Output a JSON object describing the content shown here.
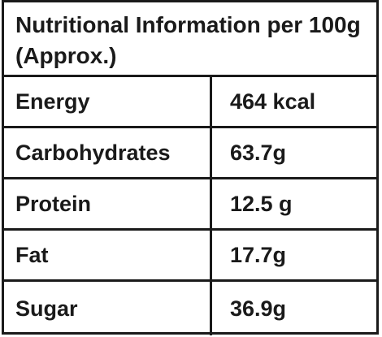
{
  "table": {
    "title": "Nutritional Information per 100g (Approx.)",
    "rows": [
      {
        "label": "Energy",
        "value": "464 kcal"
      },
      {
        "label": "Carbohydrates",
        "value": "63.7g"
      },
      {
        "label": "Protein",
        "value": "12.5 g"
      },
      {
        "label": "Fat",
        "value": "17.7g"
      },
      {
        "label": "Sugar",
        "value": "36.9g"
      }
    ]
  }
}
